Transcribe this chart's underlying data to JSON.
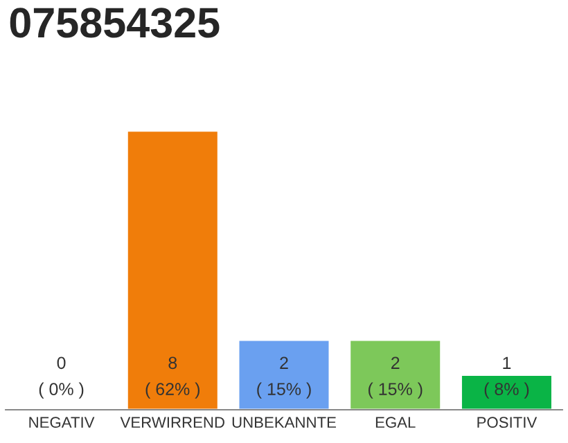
{
  "chart_data": {
    "type": "bar",
    "title": "075854325",
    "categories": [
      "NEGATIV",
      "VERWIRREND",
      "UNBEKANNTE",
      "EGAL",
      "POSITIV"
    ],
    "values": [
      0,
      8,
      2,
      2,
      1
    ],
    "colors": [
      null,
      "#f07d0a",
      "#6aa0f0",
      "#7dc85a",
      "#0ab446"
    ],
    "value_labels": [
      "0\n( 0% )",
      "8\n( 62% )",
      "2\n( 15% )",
      "2\n( 15% )",
      "1\n( 8% )"
    ],
    "grid": false,
    "legend": false
  }
}
